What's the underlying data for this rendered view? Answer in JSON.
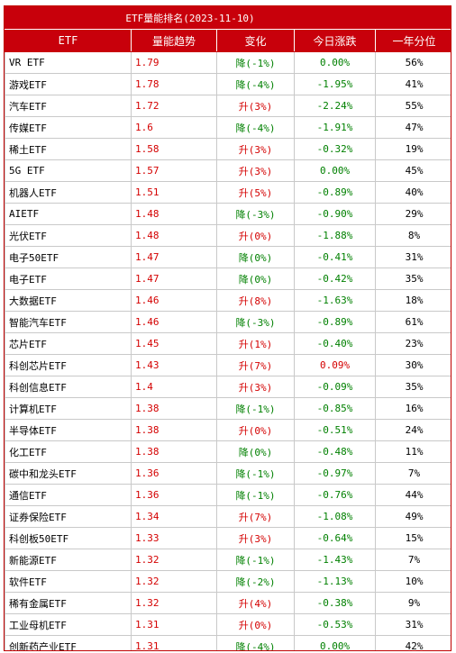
{
  "title": "ETF量能排名(2023-11-10)",
  "headers": [
    "ETF",
    "量能趋势",
    "变化",
    "今日涨跌",
    "一年分位"
  ],
  "colors": {
    "header_bg": "#c8000b",
    "up": "#d40000",
    "down": "#008000"
  },
  "rows": [
    {
      "name": "VR ETF",
      "val": "1.79",
      "chg": "降(-1%)",
      "chg_dir": "down",
      "pct": "0.00%",
      "pct_dir": "down",
      "yr": "56%"
    },
    {
      "name": "游戏ETF",
      "val": "1.78",
      "chg": "降(-4%)",
      "chg_dir": "down",
      "pct": "-1.95%",
      "pct_dir": "down",
      "yr": "41%"
    },
    {
      "name": "汽车ETF",
      "val": "1.72",
      "chg": "升(3%)",
      "chg_dir": "up",
      "pct": "-2.24%",
      "pct_dir": "down",
      "yr": "55%"
    },
    {
      "name": "传媒ETF",
      "val": "1.6",
      "chg": "降(-4%)",
      "chg_dir": "down",
      "pct": "-1.91%",
      "pct_dir": "down",
      "yr": "47%"
    },
    {
      "name": "稀土ETF",
      "val": "1.58",
      "chg": "升(3%)",
      "chg_dir": "up",
      "pct": "-0.32%",
      "pct_dir": "down",
      "yr": "19%"
    },
    {
      "name": "5G ETF",
      "val": "1.57",
      "chg": "升(3%)",
      "chg_dir": "up",
      "pct": "0.00%",
      "pct_dir": "down",
      "yr": "45%"
    },
    {
      "name": "机器人ETF",
      "val": "1.51",
      "chg": "升(5%)",
      "chg_dir": "up",
      "pct": "-0.89%",
      "pct_dir": "down",
      "yr": "40%"
    },
    {
      "name": "AIETF",
      "val": "1.48",
      "chg": "降(-3%)",
      "chg_dir": "down",
      "pct": "-0.90%",
      "pct_dir": "down",
      "yr": "29%"
    },
    {
      "name": "光伏ETF",
      "val": "1.48",
      "chg": "升(0%)",
      "chg_dir": "up",
      "pct": "-1.88%",
      "pct_dir": "down",
      "yr": "8%"
    },
    {
      "name": "电子50ETF",
      "val": "1.47",
      "chg": "降(0%)",
      "chg_dir": "down",
      "pct": "-0.41%",
      "pct_dir": "down",
      "yr": "31%"
    },
    {
      "name": "电子ETF",
      "val": "1.47",
      "chg": "降(0%)",
      "chg_dir": "down",
      "pct": "-0.42%",
      "pct_dir": "down",
      "yr": "35%"
    },
    {
      "name": "大数据ETF",
      "val": "1.46",
      "chg": "升(8%)",
      "chg_dir": "up",
      "pct": "-1.63%",
      "pct_dir": "down",
      "yr": "18%"
    },
    {
      "name": "智能汽车ETF",
      "val": "1.46",
      "chg": "降(-3%)",
      "chg_dir": "down",
      "pct": "-0.89%",
      "pct_dir": "down",
      "yr": "61%"
    },
    {
      "name": "芯片ETF",
      "val": "1.45",
      "chg": "升(1%)",
      "chg_dir": "up",
      "pct": "-0.40%",
      "pct_dir": "down",
      "yr": "23%"
    },
    {
      "name": "科创芯片ETF",
      "val": "1.43",
      "chg": "升(7%)",
      "chg_dir": "up",
      "pct": "0.09%",
      "pct_dir": "up",
      "yr": "30%"
    },
    {
      "name": "科创信息ETF",
      "val": "1.4",
      "chg": "升(3%)",
      "chg_dir": "up",
      "pct": "-0.09%",
      "pct_dir": "down",
      "yr": "35%"
    },
    {
      "name": "计算机ETF",
      "val": "1.38",
      "chg": "降(-1%)",
      "chg_dir": "down",
      "pct": "-0.85%",
      "pct_dir": "down",
      "yr": "16%"
    },
    {
      "name": "半导体ETF",
      "val": "1.38",
      "chg": "升(0%)",
      "chg_dir": "up",
      "pct": "-0.51%",
      "pct_dir": "down",
      "yr": "24%"
    },
    {
      "name": "化工ETF",
      "val": "1.38",
      "chg": "降(0%)",
      "chg_dir": "down",
      "pct": "-0.48%",
      "pct_dir": "down",
      "yr": "11%"
    },
    {
      "name": "碳中和龙头ETF",
      "val": "1.36",
      "chg": "降(-1%)",
      "chg_dir": "down",
      "pct": "-0.97%",
      "pct_dir": "down",
      "yr": "7%"
    },
    {
      "name": "通信ETF",
      "val": "1.36",
      "chg": "降(-1%)",
      "chg_dir": "down",
      "pct": "-0.76%",
      "pct_dir": "down",
      "yr": "44%"
    },
    {
      "name": "证券保险ETF",
      "val": "1.34",
      "chg": "升(7%)",
      "chg_dir": "up",
      "pct": "-1.08%",
      "pct_dir": "down",
      "yr": "49%"
    },
    {
      "name": "科创板50ETF",
      "val": "1.33",
      "chg": "升(3%)",
      "chg_dir": "up",
      "pct": "-0.64%",
      "pct_dir": "down",
      "yr": "15%"
    },
    {
      "name": "新能源ETF",
      "val": "1.32",
      "chg": "降(-1%)",
      "chg_dir": "down",
      "pct": "-1.43%",
      "pct_dir": "down",
      "yr": "7%"
    },
    {
      "name": "软件ETF",
      "val": "1.32",
      "chg": "降(-2%)",
      "chg_dir": "down",
      "pct": "-1.13%",
      "pct_dir": "down",
      "yr": "10%"
    },
    {
      "name": "稀有金属ETF",
      "val": "1.32",
      "chg": "升(4%)",
      "chg_dir": "up",
      "pct": "-0.38%",
      "pct_dir": "down",
      "yr": "9%"
    },
    {
      "name": "工业母机ETF",
      "val": "1.31",
      "chg": "升(0%)",
      "chg_dir": "up",
      "pct": "-0.53%",
      "pct_dir": "down",
      "yr": "31%"
    },
    {
      "name": "创新药产业ETF",
      "val": "1.31",
      "chg": "降(-4%)",
      "chg_dir": "down",
      "pct": "0.00%",
      "pct_dir": "down",
      "yr": "42%"
    }
  ]
}
